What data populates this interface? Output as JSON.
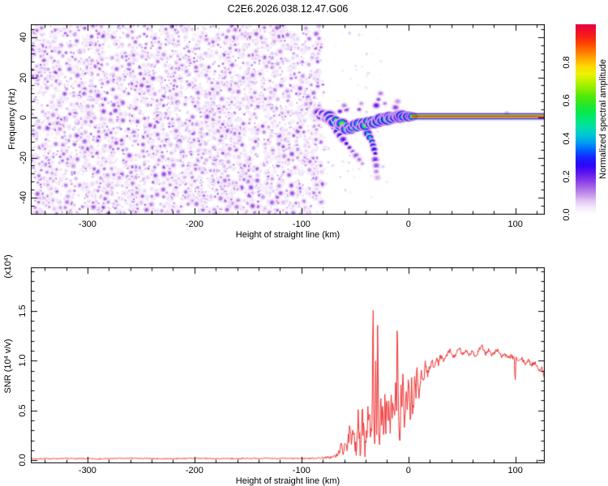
{
  "title": "C2E6.2026.038.12.47.G06",
  "frame_color": "#000000",
  "background_color": "#ffffff",
  "colormap_stops": [
    [
      0.0,
      255,
      255,
      255
    ],
    [
      0.03,
      247,
      239,
      252
    ],
    [
      0.07,
      226,
      198,
      245
    ],
    [
      0.1,
      199,
      155,
      238
    ],
    [
      0.14,
      167,
      105,
      232
    ],
    [
      0.18,
      132,
      56,
      232
    ],
    [
      0.22,
      92,
      20,
      240
    ],
    [
      0.26,
      46,
      4,
      248
    ],
    [
      0.3,
      20,
      40,
      255
    ],
    [
      0.34,
      0,
      100,
      255
    ],
    [
      0.38,
      0,
      160,
      240
    ],
    [
      0.42,
      0,
      200,
      210
    ],
    [
      0.46,
      0,
      224,
      168
    ],
    [
      0.5,
      0,
      232,
      120
    ],
    [
      0.54,
      10,
      232,
      75
    ],
    [
      0.58,
      40,
      232,
      40
    ],
    [
      0.62,
      80,
      232,
      10
    ],
    [
      0.66,
      135,
      238,
      0
    ],
    [
      0.7,
      189,
      242,
      0
    ],
    [
      0.74,
      238,
      242,
      0
    ],
    [
      0.78,
      255,
      216,
      0
    ],
    [
      0.82,
      255,
      170,
      0
    ],
    [
      0.86,
      255,
      120,
      0
    ],
    [
      0.9,
      255,
      70,
      0
    ],
    [
      0.94,
      245,
      30,
      24
    ],
    [
      1.0,
      230,
      0,
      64
    ]
  ],
  "chart_data": [
    {
      "type": "heatmap",
      "name": "spectrogram",
      "xlabel": "Height of straight line (km)",
      "ylabel": "Frequency (Hz)",
      "xlim": [
        -353,
        127.5
      ],
      "ylim": [
        -48.5,
        46.5
      ],
      "xticks": [
        {
          "v": -300,
          "l": "-300"
        },
        {
          "v": -200,
          "l": "-200"
        },
        {
          "v": -100,
          "l": "-100"
        },
        {
          "v": 0,
          "l": "0"
        },
        {
          "v": 100,
          "l": "100"
        }
      ],
      "yticks": [
        {
          "v": 40,
          "l": "40"
        },
        {
          "v": 20,
          "l": "20"
        },
        {
          "v": 0,
          "l": "0"
        },
        {
          "v": -20,
          "l": "-20"
        },
        {
          "v": -40,
          "l": "-40"
        }
      ],
      "x_minor_step": 20,
      "y_minor_step": 4,
      "colorbar": {
        "label": "Normalized spectral amplitude",
        "ticks": [
          {
            "v": 0.0,
            "l": "0.0"
          },
          {
            "v": 0.2,
            "l": "0.2"
          },
          {
            "v": 0.4,
            "l": "0.4"
          },
          {
            "v": 0.6,
            "l": "0.6"
          },
          {
            "v": 0.8,
            "l": "0.8"
          }
        ],
        "range": [
          0,
          1
        ]
      },
      "noise_field": {
        "x_range": [
          -353,
          -78
        ],
        "taper_km": 6,
        "blob_count": 4200,
        "amp_min": 0.04,
        "amp_spread": 0.16,
        "seed": 42
      },
      "sparse_speckles": {
        "count": 90,
        "x_range": [
          -79,
          -20
        ],
        "amp_max": 0.09,
        "seed": 99
      },
      "signal_track": [
        [
          -86,
          1.5,
          0.2
        ],
        [
          -84,
          2.5,
          0.3
        ],
        [
          -82,
          0.5,
          0.35
        ],
        [
          -80,
          2,
          0.4
        ],
        [
          -78,
          1,
          0.5
        ],
        [
          -76,
          -0.5,
          0.45
        ],
        [
          -74,
          1,
          0.55
        ],
        [
          -72,
          -1,
          0.6
        ],
        [
          -70,
          -2.5,
          0.55
        ],
        [
          -68,
          -1,
          0.65
        ],
        [
          -66,
          -3,
          0.6
        ],
        [
          -64,
          -4.5,
          0.7
        ],
        [
          -62,
          -3,
          0.75
        ],
        [
          -60,
          -5,
          0.65
        ],
        [
          -58,
          -6,
          0.75
        ],
        [
          -56,
          -4.5,
          0.8
        ],
        [
          -54,
          -6,
          0.7
        ],
        [
          -52,
          -5,
          0.8
        ],
        [
          -50,
          -3.5,
          0.75
        ],
        [
          -48,
          -5,
          0.85
        ],
        [
          -46,
          -3,
          0.8
        ],
        [
          -44,
          -4.5,
          0.75
        ],
        [
          -42,
          -2.5,
          0.85
        ],
        [
          -40,
          -4,
          0.8
        ],
        [
          -38,
          -2,
          0.75
        ],
        [
          -36,
          -3.5,
          0.85
        ],
        [
          -34,
          -1.5,
          0.8
        ],
        [
          -32,
          -3,
          0.75
        ],
        [
          -30,
          -1,
          0.85
        ],
        [
          -28,
          -2,
          0.8
        ],
        [
          -26,
          -0.5,
          0.9
        ],
        [
          -24,
          -1.5,
          0.85
        ],
        [
          -22,
          0,
          0.8
        ],
        [
          -20,
          -1,
          0.9
        ],
        [
          -18,
          0.5,
          0.85
        ],
        [
          -16,
          -0.5,
          0.8
        ],
        [
          -14,
          0.5,
          0.9
        ],
        [
          -12,
          0,
          0.85
        ],
        [
          -10,
          0.8,
          0.9
        ],
        [
          -8,
          0.2,
          0.85
        ],
        [
          -6,
          0.8,
          0.95
        ],
        [
          -4,
          0.3,
          0.9
        ],
        [
          -2,
          0.7,
          0.95
        ],
        [
          0,
          0.4,
          0.9
        ],
        [
          2,
          0.6,
          0.95
        ],
        [
          4,
          0.5,
          0.9
        ]
      ],
      "branch_track": [
        [
          -70,
          -5,
          0.3
        ],
        [
          -67,
          -7,
          0.35
        ],
        [
          -64,
          -9,
          0.3
        ],
        [
          -61,
          -11,
          0.25
        ],
        [
          -58,
          -13,
          0.3
        ],
        [
          -55,
          -15,
          0.25
        ],
        [
          -52,
          -17,
          0.2
        ],
        [
          -49,
          -19,
          0.18
        ],
        [
          -46,
          -21,
          0.15
        ],
        [
          -43,
          -23,
          0.12
        ],
        [
          -42,
          -5,
          0.4
        ],
        [
          -40,
          -6,
          0.45
        ],
        [
          -38,
          -8,
          0.5
        ],
        [
          -36,
          -10,
          0.55
        ],
        [
          -34,
          -12,
          0.5
        ],
        [
          -33,
          -14,
          0.4
        ],
        [
          -32,
          -16,
          0.35
        ],
        [
          -31,
          -18,
          0.3
        ],
        [
          -31,
          -21,
          0.22
        ],
        [
          -30,
          -24,
          0.18
        ],
        [
          -30,
          -27,
          0.14
        ],
        [
          -29,
          -30,
          0.1
        ]
      ],
      "upper_blobs": [
        [
          -30,
          6,
          0.25
        ],
        [
          -28,
          9,
          0.2
        ],
        [
          -26,
          12,
          0.15
        ],
        [
          -22,
          7,
          0.15
        ],
        [
          -58,
          4,
          0.2
        ],
        [
          -60,
          6,
          0.15
        ],
        [
          -12,
          5,
          0.2
        ],
        [
          -10,
          8,
          0.12
        ],
        [
          -64,
          3,
          0.25
        ],
        [
          -46,
          4,
          0.2
        ],
        [
          -44,
          7,
          0.12
        ],
        [
          92,
          2,
          0.15
        ]
      ],
      "carrier_line": {
        "x_range": [
          3,
          127.5
        ],
        "freq": 0.5,
        "profile": [
          [
            0,
            0.96
          ],
          [
            1,
            0.88
          ],
          [
            2,
            0.58
          ],
          [
            3,
            0.28
          ],
          [
            4,
            0.11
          ]
        ]
      }
    },
    {
      "type": "line",
      "name": "snr",
      "xlabel": "Height of straight line (km)",
      "ylabel_pre": "SNR (10",
      "ylabel_sup": "4",
      "ylabel_post": " v/v)",
      "scale_note_pre": "(x10",
      "scale_note_sup": "4",
      "scale_note_post": ")",
      "line_color": "#f03434",
      "xlim": [
        -353,
        127.5
      ],
      "ylim": [
        -0.03,
        1.937
      ],
      "xticks": [
        {
          "v": -300,
          "l": "-300"
        },
        {
          "v": -200,
          "l": "-200"
        },
        {
          "v": -100,
          "l": "-100"
        },
        {
          "v": 0,
          "l": "0"
        },
        {
          "v": 100,
          "l": "100"
        }
      ],
      "yticks": [
        {
          "v": 0,
          "l": "0.0"
        },
        {
          "v": 0.5,
          "l": "0.5"
        },
        {
          "v": 1,
          "l": "1.0"
        },
        {
          "v": 1.5,
          "l": "1.5"
        }
      ],
      "x_minor_step": 20,
      "y_minor_step": 0.1,
      "seed": 7,
      "keypoints": [
        [
          -353,
          0.015
        ],
        [
          -320,
          0.018
        ],
        [
          -290,
          0.015
        ],
        [
          -260,
          0.02
        ],
        [
          -230,
          0.016
        ],
        [
          -200,
          0.02
        ],
        [
          -170,
          0.016
        ],
        [
          -140,
          0.02
        ],
        [
          -110,
          0.018
        ],
        [
          -90,
          0.02
        ],
        [
          -80,
          0.025
        ],
        [
          -72,
          0.03
        ],
        [
          -66,
          0.05
        ],
        [
          -63,
          0.15
        ],
        [
          -61,
          0.07
        ],
        [
          -59,
          0.22
        ],
        [
          -57,
          0.1
        ],
        [
          -55,
          0.3
        ],
        [
          -53,
          0.14
        ],
        [
          -51,
          0.34
        ],
        [
          -49,
          0.1
        ],
        [
          -47,
          0.42
        ],
        [
          -45,
          0.06
        ],
        [
          -43,
          0.46
        ],
        [
          -41,
          0.12
        ],
        [
          -39,
          0.32
        ],
        [
          -37,
          0.55
        ],
        [
          -35,
          0.12
        ],
        [
          -34,
          0.4
        ],
        [
          -33,
          1.86
        ],
        [
          -32.4,
          0.28
        ],
        [
          -31.6,
          0.09
        ],
        [
          -30.6,
          0.95
        ],
        [
          -29.6,
          0.22
        ],
        [
          -28.6,
          1.55
        ],
        [
          -28,
          0.38
        ],
        [
          -27,
          0.12
        ],
        [
          -26,
          0.68
        ],
        [
          -25,
          0.28
        ],
        [
          -24,
          0.52
        ],
        [
          -23,
          0.16
        ],
        [
          -22,
          0.62
        ],
        [
          -21,
          0.34
        ],
        [
          -20,
          0.72
        ],
        [
          -19,
          0.42
        ],
        [
          -18,
          0.58
        ],
        [
          -17,
          0.28
        ],
        [
          -16,
          0.76
        ],
        [
          -15,
          0.48
        ],
        [
          -14,
          0.62
        ],
        [
          -13,
          0.38
        ],
        [
          -12,
          0.8
        ],
        [
          -11,
          0.55
        ],
        [
          -10.4,
          1.52
        ],
        [
          -9.6,
          0.66
        ],
        [
          -8.8,
          0.3
        ],
        [
          -8,
          0.03
        ],
        [
          -7,
          0.72
        ],
        [
          -6,
          0.5
        ],
        [
          -5,
          0.86
        ],
        [
          -4,
          0.44
        ],
        [
          -3,
          0.34
        ],
        [
          -2,
          0.74
        ],
        [
          -1,
          0.5
        ],
        [
          0,
          0.88
        ],
        [
          1,
          0.58
        ],
        [
          2,
          0.32
        ],
        [
          3,
          0.84
        ],
        [
          4,
          0.5
        ],
        [
          5,
          0.56
        ],
        [
          6,
          0.88
        ],
        [
          7,
          0.64
        ],
        [
          8,
          0.94
        ],
        [
          9,
          0.74
        ],
        [
          10,
          0.62
        ],
        [
          12,
          0.92
        ],
        [
          14,
          0.78
        ],
        [
          16,
          0.98
        ],
        [
          18,
          0.86
        ],
        [
          20,
          0.92
        ],
        [
          22,
          1.0
        ],
        [
          24,
          0.94
        ],
        [
          26,
          1.02
        ],
        [
          28,
          0.97
        ],
        [
          30,
          1.05
        ],
        [
          33,
          0.99
        ],
        [
          36,
          1.06
        ],
        [
          39,
          1.1
        ],
        [
          42,
          1.03
        ],
        [
          45,
          1.08
        ],
        [
          48,
          1.12
        ],
        [
          51,
          1.05
        ],
        [
          54,
          1.11
        ],
        [
          57,
          1.06
        ],
        [
          60,
          1.1
        ],
        [
          63,
          1.03
        ],
        [
          66,
          1.11
        ],
        [
          69,
          1.14
        ],
        [
          72,
          1.07
        ],
        [
          75,
          1.11
        ],
        [
          78,
          1.05
        ],
        [
          81,
          1.09
        ],
        [
          84,
          1.11
        ],
        [
          87,
          1.04
        ],
        [
          90,
          1.07
        ],
        [
          93,
          1.02
        ],
        [
          96,
          1.05
        ],
        [
          99,
          1.01
        ],
        [
          99.8,
          0.79
        ],
        [
          100.6,
          1.03
        ],
        [
          103,
          0.99
        ],
        [
          106,
          1.02
        ],
        [
          109,
          0.97
        ],
        [
          112,
          1.0
        ],
        [
          115,
          0.96
        ],
        [
          118,
          0.98
        ],
        [
          121,
          0.94
        ],
        [
          123,
          0.89
        ],
        [
          125,
          0.93
        ],
        [
          126.5,
          0.86
        ],
        [
          127.5,
          0.84
        ]
      ],
      "noise_profile": [
        [
          -353,
          0.006
        ],
        [
          -100,
          0.006
        ],
        [
          -80,
          0.008
        ],
        [
          -68,
          0.02
        ],
        [
          -60,
          0.05
        ],
        [
          -52,
          0.09
        ],
        [
          -44,
          0.12
        ],
        [
          -36,
          0.14
        ],
        [
          -30,
          0.12
        ],
        [
          -24,
          0.1
        ],
        [
          -18,
          0.11
        ],
        [
          -12,
          0.1
        ],
        [
          -6,
          0.09
        ],
        [
          0,
          0.08
        ],
        [
          6,
          0.07
        ],
        [
          12,
          0.05
        ],
        [
          18,
          0.04
        ],
        [
          24,
          0.03
        ],
        [
          32,
          0.025
        ],
        [
          45,
          0.022
        ],
        [
          127.5,
          0.02
        ]
      ]
    }
  ]
}
